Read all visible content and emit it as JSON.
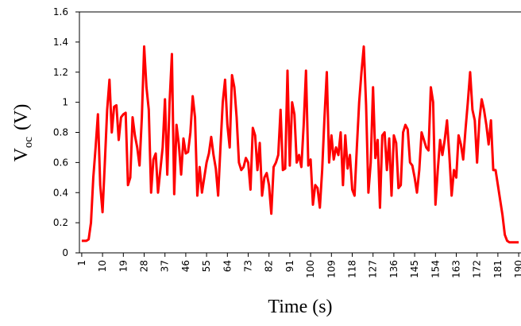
{
  "chart_data": {
    "type": "line",
    "x_label": "Time (s)",
    "y_label": "V",
    "y_label_sub": "oc",
    "y_label_unit": "(V)",
    "x": [
      1,
      2,
      3,
      4,
      5,
      6,
      7,
      8,
      9,
      10,
      11,
      12,
      13,
      14,
      15,
      16,
      17,
      18,
      19,
      20,
      21,
      22,
      23,
      24,
      25,
      26,
      27,
      28,
      29,
      30,
      31,
      32,
      33,
      34,
      35,
      36,
      37,
      38,
      39,
      40,
      41,
      42,
      43,
      44,
      45,
      46,
      47,
      48,
      49,
      50,
      51,
      52,
      53,
      54,
      55,
      56,
      57,
      58,
      59,
      60,
      61,
      62,
      63,
      64,
      65,
      66,
      67,
      68,
      69,
      70,
      71,
      72,
      73,
      74,
      75,
      76,
      77,
      78,
      79,
      80,
      81,
      82,
      83,
      84,
      85,
      86,
      87,
      88,
      89,
      90,
      91,
      92,
      93,
      94,
      95,
      96,
      97,
      98,
      99,
      100,
      101,
      102,
      103,
      104,
      105,
      106,
      107,
      108,
      109,
      110,
      111,
      112,
      113,
      114,
      115,
      116,
      117,
      118,
      119,
      120,
      121,
      122,
      123,
      124,
      125,
      126,
      127,
      128,
      129,
      130,
      131,
      132,
      133,
      134,
      135,
      136,
      137,
      138,
      139,
      140,
      141,
      142,
      143,
      144,
      145,
      146,
      147,
      148,
      149,
      150,
      151,
      152,
      153,
      154,
      155,
      156,
      157,
      158,
      159,
      160,
      161,
      162,
      163,
      164,
      165,
      166,
      167,
      168,
      169,
      170,
      171,
      172,
      173,
      174,
      175,
      176,
      177,
      178,
      179,
      180,
      181,
      182,
      183,
      184,
      185,
      186,
      187,
      188,
      189,
      190
    ],
    "series": [
      {
        "color": "#ff0000",
        "values": [
          0.08,
          0.08,
          0.08,
          0.09,
          0.2,
          0.5,
          0.7,
          0.92,
          0.45,
          0.27,
          0.6,
          0.95,
          1.15,
          0.8,
          0.97,
          0.98,
          0.75,
          0.9,
          0.92,
          0.93,
          0.45,
          0.5,
          0.9,
          0.78,
          0.7,
          0.58,
          0.9,
          1.37,
          1.1,
          0.95,
          0.4,
          0.62,
          0.66,
          0.4,
          0.55,
          0.7,
          1.02,
          0.52,
          1.0,
          1.32,
          0.39,
          0.85,
          0.72,
          0.52,
          0.76,
          0.66,
          0.67,
          0.8,
          1.04,
          0.9,
          0.38,
          0.57,
          0.4,
          0.5,
          0.6,
          0.66,
          0.77,
          0.65,
          0.56,
          0.38,
          0.7,
          1.0,
          1.15,
          0.85,
          0.7,
          1.18,
          1.1,
          0.9,
          0.6,
          0.55,
          0.57,
          0.63,
          0.6,
          0.42,
          0.83,
          0.78,
          0.55,
          0.73,
          0.38,
          0.5,
          0.53,
          0.45,
          0.26,
          0.57,
          0.6,
          0.65,
          0.95,
          0.55,
          0.56,
          1.21,
          0.58,
          1.0,
          0.92,
          0.6,
          0.65,
          0.57,
          0.85,
          1.21,
          0.58,
          0.62,
          0.32,
          0.45,
          0.43,
          0.3,
          0.55,
          0.9,
          1.2,
          0.6,
          0.78,
          0.62,
          0.7,
          0.65,
          0.8,
          0.45,
          0.78,
          0.56,
          0.65,
          0.42,
          0.38,
          0.7,
          1.0,
          1.2,
          1.37,
          0.98,
          0.4,
          0.6,
          1.1,
          0.63,
          0.75,
          0.3,
          0.78,
          0.8,
          0.55,
          0.76,
          0.38,
          0.78,
          0.73,
          0.43,
          0.45,
          0.8,
          0.85,
          0.82,
          0.6,
          0.58,
          0.5,
          0.4,
          0.55,
          0.8,
          0.75,
          0.7,
          0.68,
          1.1,
          1.0,
          0.32,
          0.55,
          0.75,
          0.65,
          0.75,
          0.88,
          0.65,
          0.38,
          0.55,
          0.5,
          0.78,
          0.72,
          0.62,
          0.82,
          1.0,
          1.2,
          0.95,
          0.88,
          0.6,
          0.88,
          1.02,
          0.95,
          0.85,
          0.72,
          0.88,
          0.55,
          0.55,
          0.45,
          0.35,
          0.25,
          0.12,
          0.08,
          0.07,
          0.07,
          0.07,
          0.07,
          0.07
        ]
      }
    ],
    "xlim": [
      0,
      191
    ],
    "xticks": [
      1,
      10,
      19,
      28,
      37,
      46,
      55,
      64,
      73,
      82,
      91,
      100,
      109,
      118,
      127,
      136,
      145,
      154,
      163,
      172,
      181,
      190
    ],
    "ylim": [
      0,
      1.6
    ],
    "yticks": [
      0,
      0.2,
      0.4,
      0.6,
      0.8,
      1,
      1.2,
      1.4,
      1.6
    ],
    "grid": false
  }
}
